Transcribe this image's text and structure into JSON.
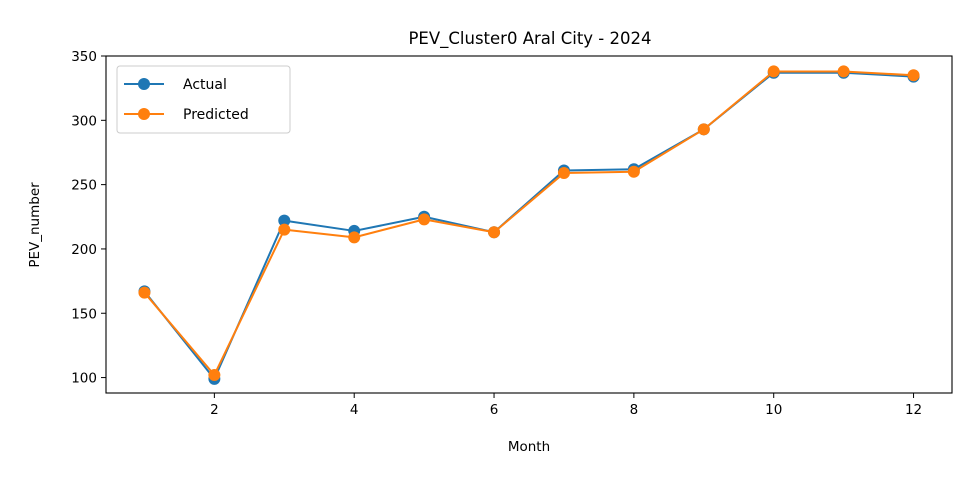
{
  "chart_data": {
    "type": "line",
    "title": "PEV_Cluster0 Aral City - 2024",
    "xlabel": "Month",
    "ylabel": "PEV_number",
    "x": [
      1,
      2,
      3,
      4,
      5,
      6,
      7,
      8,
      9,
      10,
      11,
      12
    ],
    "xticks": [
      2,
      4,
      6,
      8,
      10,
      12
    ],
    "yticks": [
      100,
      150,
      200,
      250,
      300,
      350
    ],
    "xlim": [
      0.45,
      12.55
    ],
    "ylim": [
      88,
      350
    ],
    "grid": false,
    "legend_position": "upper-left",
    "series": [
      {
        "name": "Actual",
        "color": "#1f77b4",
        "marker": "circle",
        "values": [
          167,
          99,
          222,
          214,
          225,
          213,
          261,
          262,
          293,
          337,
          337,
          334
        ]
      },
      {
        "name": "Predicted",
        "color": "#ff7f0e",
        "marker": "circle",
        "values": [
          166,
          102,
          215,
          209,
          223,
          213,
          259,
          260,
          293,
          338,
          338,
          335
        ]
      }
    ]
  }
}
